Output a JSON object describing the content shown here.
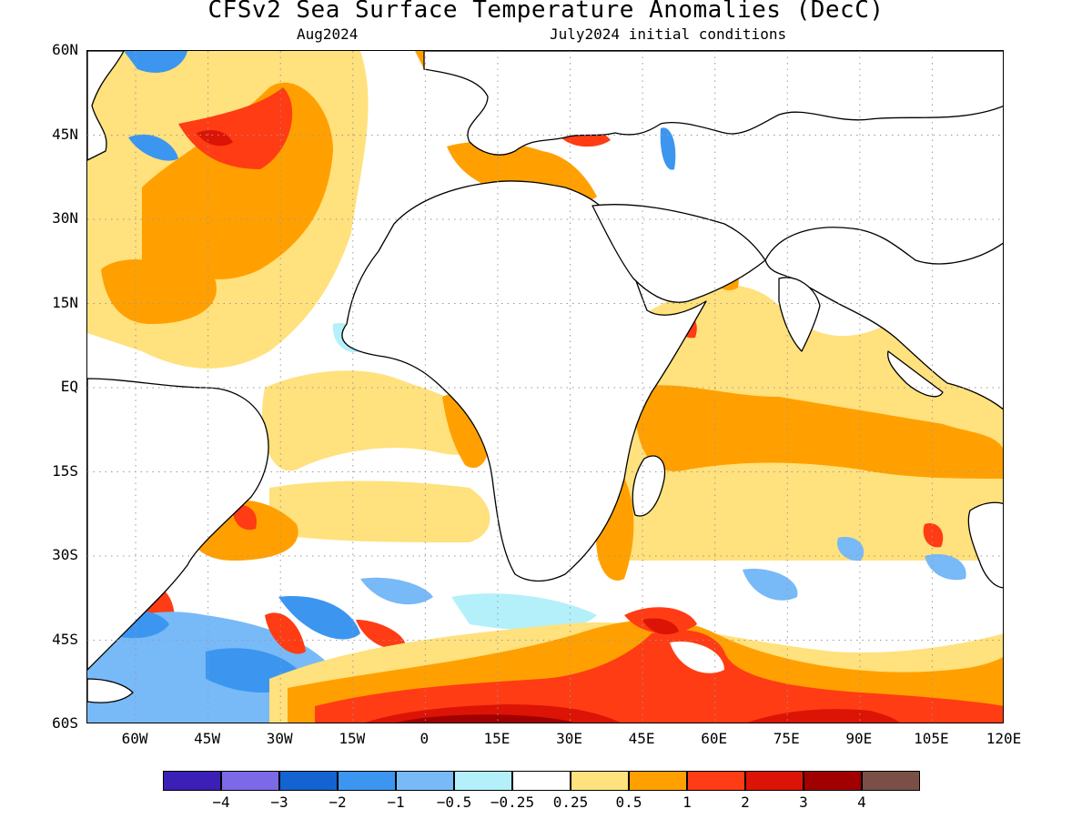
{
  "title": "CFSv2 Sea Surface Temperature Anomalies (DecC)",
  "subtitle_left": "Aug2024",
  "subtitle_right": "July2024 initial conditions",
  "lat_labels": [
    "60N",
    "45N",
    "30N",
    "15N",
    "EQ",
    "15S",
    "30S",
    "45S",
    "60S"
  ],
  "lon_labels": [
    "60W",
    "45W",
    "30W",
    "15W",
    "0",
    "15E",
    "30E",
    "45E",
    "60E",
    "75E",
    "90E",
    "105E",
    "120E"
  ],
  "map": {
    "lon_range": [
      -70,
      120
    ],
    "lat_range": [
      -60,
      60
    ],
    "grid_lines": true
  },
  "colorbar": {
    "colors": [
      "#3c1fb4",
      "#7b69e6",
      "#1463d2",
      "#3c96f0",
      "#78b9f8",
      "#b4f0fa",
      "#ffffff",
      "#ffe17d",
      "#ffa000",
      "#ff3c14",
      "#dc1405",
      "#a00000",
      "#7a5046"
    ],
    "labels": [
      "−4",
      "−3",
      "−2",
      "−1",
      "−0.5",
      "−0.25",
      "0.25",
      "0.5",
      "1",
      "2",
      "3",
      "4"
    ]
  }
}
